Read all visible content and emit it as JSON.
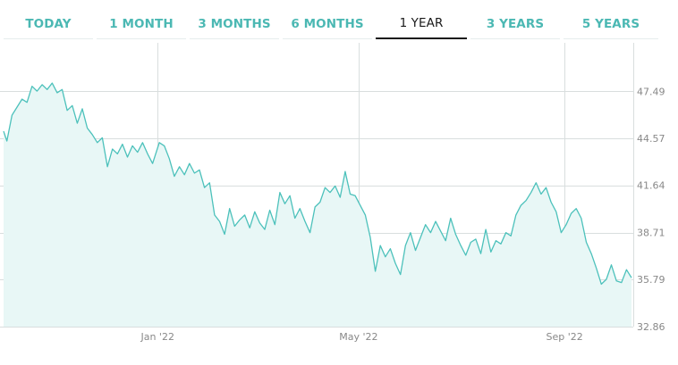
{
  "range_tabs": {
    "items": [
      {
        "label": "TODAY"
      },
      {
        "label": "1 MONTH"
      },
      {
        "label": "3 MONTHS"
      },
      {
        "label": "6 MONTHS"
      },
      {
        "label": "1 YEAR"
      },
      {
        "label": "3 YEARS"
      },
      {
        "label": "5 YEARS"
      }
    ],
    "active_index": 4
  },
  "colors": {
    "accent": "#4bb8b3",
    "line": "#4cc1bb",
    "fill": "#e8f7f6",
    "grid": "#d9dede",
    "tick_text": "#888888",
    "active_tab": "#1a1a1a"
  },
  "chart_data": {
    "type": "area",
    "ylim": [
      32.86,
      50.5
    ],
    "y_ticks": [
      "47.49",
      "44.57",
      "41.64",
      "38.71",
      "35.79",
      "32.86"
    ],
    "y_tick_values": [
      47.49,
      44.57,
      41.64,
      38.71,
      35.79,
      32.86
    ],
    "x_ticks": [
      {
        "label": "Jan '22",
        "date": "2022-01-01"
      },
      {
        "label": "May '22",
        "date": "2022-05-01"
      },
      {
        "label": "Sep '22",
        "date": "2022-09-01"
      }
    ],
    "grid": true,
    "series": [
      {
        "points": [
          [
            "2021-10-01",
            45.0
          ],
          [
            "2021-10-03",
            44.4
          ],
          [
            "2021-10-06",
            46.0
          ],
          [
            "2021-10-09",
            46.5
          ],
          [
            "2021-10-12",
            47.0
          ],
          [
            "2021-10-15",
            46.8
          ],
          [
            "2021-10-18",
            47.8
          ],
          [
            "2021-10-21",
            47.5
          ],
          [
            "2021-10-24",
            47.9
          ],
          [
            "2021-10-27",
            47.6
          ],
          [
            "2021-10-30",
            48.0
          ],
          [
            "2021-11-02",
            47.4
          ],
          [
            "2021-11-05",
            47.6
          ],
          [
            "2021-11-08",
            46.3
          ],
          [
            "2021-11-11",
            46.6
          ],
          [
            "2021-11-14",
            45.5
          ],
          [
            "2021-11-17",
            46.4
          ],
          [
            "2021-11-20",
            45.2
          ],
          [
            "2021-11-23",
            44.8
          ],
          [
            "2021-11-26",
            44.3
          ],
          [
            "2021-11-29",
            44.6
          ],
          [
            "2021-12-02",
            42.8
          ],
          [
            "2021-12-05",
            43.9
          ],
          [
            "2021-12-08",
            43.6
          ],
          [
            "2021-12-11",
            44.2
          ],
          [
            "2021-12-14",
            43.4
          ],
          [
            "2021-12-17",
            44.1
          ],
          [
            "2021-12-20",
            43.7
          ],
          [
            "2021-12-23",
            44.3
          ],
          [
            "2021-12-26",
            43.6
          ],
          [
            "2021-12-29",
            43.0
          ],
          [
            "2022-01-02",
            44.3
          ],
          [
            "2022-01-05",
            44.1
          ],
          [
            "2022-01-08",
            43.3
          ],
          [
            "2022-01-11",
            42.2
          ],
          [
            "2022-01-14",
            42.8
          ],
          [
            "2022-01-17",
            42.3
          ],
          [
            "2022-01-20",
            43.0
          ],
          [
            "2022-01-23",
            42.4
          ],
          [
            "2022-01-26",
            42.6
          ],
          [
            "2022-01-29",
            41.5
          ],
          [
            "2022-02-01",
            41.8
          ],
          [
            "2022-02-04",
            39.8
          ],
          [
            "2022-02-07",
            39.4
          ],
          [
            "2022-02-10",
            38.6
          ],
          [
            "2022-02-13",
            40.2
          ],
          [
            "2022-02-16",
            39.1
          ],
          [
            "2022-02-19",
            39.5
          ],
          [
            "2022-02-22",
            39.8
          ],
          [
            "2022-02-25",
            39.0
          ],
          [
            "2022-02-28",
            40.0
          ],
          [
            "2022-03-03",
            39.3
          ],
          [
            "2022-03-06",
            38.9
          ],
          [
            "2022-03-09",
            40.1
          ],
          [
            "2022-03-12",
            39.2
          ],
          [
            "2022-03-15",
            41.2
          ],
          [
            "2022-03-18",
            40.5
          ],
          [
            "2022-03-21",
            41.0
          ],
          [
            "2022-03-24",
            39.6
          ],
          [
            "2022-03-27",
            40.2
          ],
          [
            "2022-03-30",
            39.4
          ],
          [
            "2022-04-02",
            38.7
          ],
          [
            "2022-04-05",
            40.3
          ],
          [
            "2022-04-08",
            40.6
          ],
          [
            "2022-04-11",
            41.5
          ],
          [
            "2022-04-14",
            41.2
          ],
          [
            "2022-04-17",
            41.6
          ],
          [
            "2022-04-20",
            40.9
          ],
          [
            "2022-04-23",
            42.5
          ],
          [
            "2022-04-26",
            41.1
          ],
          [
            "2022-04-29",
            41.0
          ],
          [
            "2022-05-02",
            40.4
          ],
          [
            "2022-05-05",
            39.8
          ],
          [
            "2022-05-08",
            38.4
          ],
          [
            "2022-05-11",
            36.3
          ],
          [
            "2022-05-14",
            37.9
          ],
          [
            "2022-05-17",
            37.2
          ],
          [
            "2022-05-20",
            37.7
          ],
          [
            "2022-05-23",
            36.8
          ],
          [
            "2022-05-26",
            36.1
          ],
          [
            "2022-05-29",
            37.9
          ],
          [
            "2022-06-01",
            38.7
          ],
          [
            "2022-06-04",
            37.6
          ],
          [
            "2022-06-07",
            38.4
          ],
          [
            "2022-06-10",
            39.2
          ],
          [
            "2022-06-13",
            38.7
          ],
          [
            "2022-06-16",
            39.4
          ],
          [
            "2022-06-19",
            38.8
          ],
          [
            "2022-06-22",
            38.2
          ],
          [
            "2022-06-25",
            39.6
          ],
          [
            "2022-06-28",
            38.6
          ],
          [
            "2022-07-01",
            37.9
          ],
          [
            "2022-07-04",
            37.3
          ],
          [
            "2022-07-07",
            38.1
          ],
          [
            "2022-07-10",
            38.3
          ],
          [
            "2022-07-13",
            37.4
          ],
          [
            "2022-07-16",
            38.9
          ],
          [
            "2022-07-19",
            37.5
          ],
          [
            "2022-07-22",
            38.2
          ],
          [
            "2022-07-25",
            38.0
          ],
          [
            "2022-07-28",
            38.7
          ],
          [
            "2022-07-31",
            38.5
          ],
          [
            "2022-08-03",
            39.8
          ],
          [
            "2022-08-06",
            40.4
          ],
          [
            "2022-08-09",
            40.7
          ],
          [
            "2022-08-12",
            41.2
          ],
          [
            "2022-08-15",
            41.8
          ],
          [
            "2022-08-18",
            41.1
          ],
          [
            "2022-08-21",
            41.5
          ],
          [
            "2022-08-24",
            40.6
          ],
          [
            "2022-08-27",
            40.0
          ],
          [
            "2022-08-30",
            38.7
          ],
          [
            "2022-09-02",
            39.2
          ],
          [
            "2022-09-05",
            39.9
          ],
          [
            "2022-09-08",
            40.2
          ],
          [
            "2022-09-11",
            39.6
          ],
          [
            "2022-09-14",
            38.1
          ],
          [
            "2022-09-17",
            37.4
          ],
          [
            "2022-09-20",
            36.5
          ],
          [
            "2022-09-23",
            35.5
          ],
          [
            "2022-09-26",
            35.8
          ],
          [
            "2022-09-29",
            36.7
          ],
          [
            "2022-10-02",
            35.7
          ],
          [
            "2022-10-05",
            35.6
          ],
          [
            "2022-10-08",
            36.4
          ],
          [
            "2022-10-11",
            35.9
          ]
        ]
      }
    ]
  }
}
